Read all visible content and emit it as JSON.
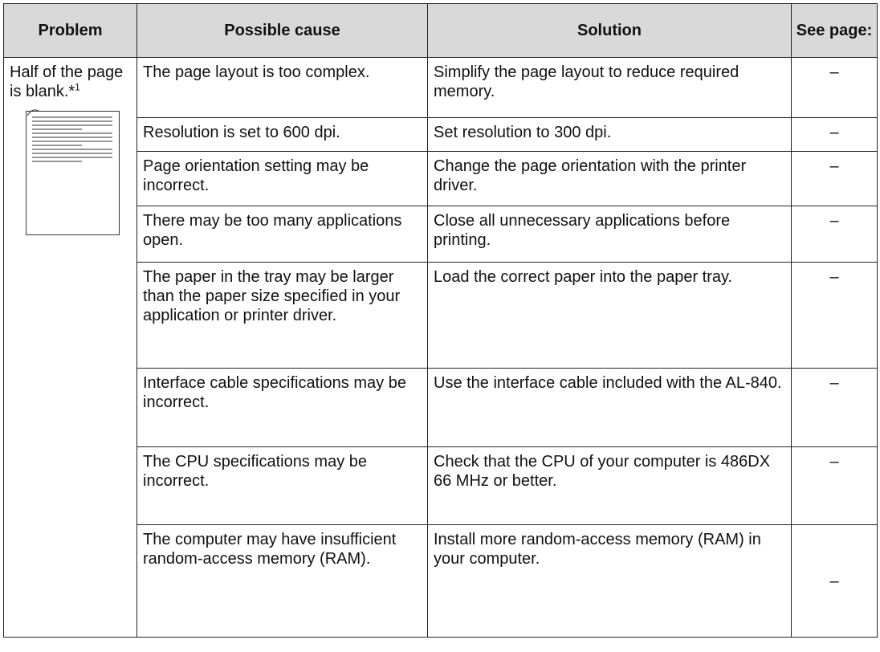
{
  "table": {
    "header": [
      "Problem",
      "Possible cause",
      "Solution",
      "See page:"
    ],
    "problem": {
      "text": "Half of the page is blank.*",
      "sup": "1"
    },
    "rows": [
      {
        "cause": "The page layout is too complex.",
        "solution": "Simplify the page layout to reduce required memory.",
        "page": "–"
      },
      {
        "cause": "Resolution is set to 600 dpi.",
        "solution": "Set resolution to 300 dpi.",
        "page": "–"
      },
      {
        "cause": "Page orientation setting may be incorrect.",
        "solution": "Change the page orientation with the printer driver.",
        "page": "–"
      },
      {
        "cause": "There may be too many applications open.",
        "solution": "Close all unnecessary applications before printing.",
        "page": "–"
      },
      {
        "cause": "The paper in the tray may be larger than the paper size specified in your application or printer driver.",
        "solution": "Load the correct paper into the paper tray.",
        "page": "–"
      },
      {
        "cause": "Interface cable specifications may be incorrect.",
        "solution": "Use the interface cable included with the AL-840.",
        "page": "–"
      },
      {
        "cause": "The CPU specifications may be incorrect.",
        "solution": "Check that the CPU of your computer is 486DX 66 MHz or better.",
        "page": "–"
      },
      {
        "cause": "The computer may have insufficient random-access memory (RAM).",
        "solution": "Install more random-access memory (RAM) in your computer.",
        "page": "–"
      }
    ]
  }
}
